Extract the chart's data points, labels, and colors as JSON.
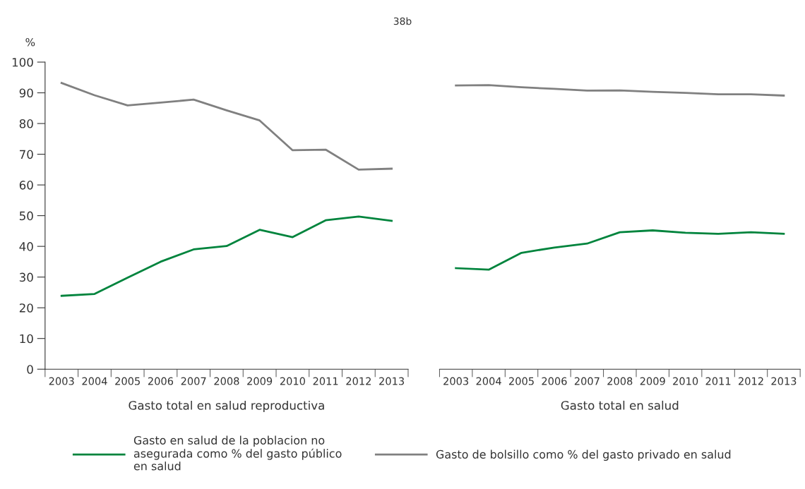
{
  "chart_data": [
    {
      "type": "line",
      "title": "38b",
      "xlabel": "Gasto total en salud reproductiva",
      "ylabel": "%",
      "categories": [
        "2003",
        "2004",
        "2005",
        "2006",
        "2007",
        "2008",
        "2009",
        "2010",
        "2011",
        "2012",
        "2013"
      ],
      "ylim": [
        0,
        100
      ],
      "yticks": [
        0,
        10,
        20,
        30,
        40,
        50,
        60,
        70,
        80,
        90,
        100
      ],
      "grid": false,
      "legend": "bottom",
      "marker": "none",
      "line_style": "solid",
      "series": [
        {
          "name": "Gasto en salud de la poblacion no\nasegurada como % del gasto público\nen salud",
          "color": "#00843d",
          "values": [
            23.9,
            24.5,
            29.8,
            35.0,
            39.0,
            40.1,
            45.4,
            43.0,
            48.5,
            49.7,
            48.3
          ]
        },
        {
          "name": "Gasto de bolsillo como % del gasto privado en salud",
          "color": "#808080",
          "values": [
            93.2,
            89.2,
            85.9,
            86.8,
            87.8,
            84.3,
            81.0,
            71.3,
            71.5,
            65.0,
            65.3
          ]
        }
      ]
    },
    {
      "type": "line",
      "xlabel": "Gasto total en salud",
      "categories": [
        "2003",
        "2004",
        "2005",
        "2006",
        "2007",
        "2008",
        "2009",
        "2010",
        "2011",
        "2012",
        "2013"
      ],
      "ylim": [
        0,
        100
      ],
      "tick_labels": "x",
      "grid": false,
      "marker": "none",
      "line_style": "solid",
      "series": [
        {
          "color": "#00843d",
          "values": [
            32.9,
            32.4,
            37.9,
            39.6,
            40.9,
            44.6,
            45.2,
            44.4,
            44.1,
            44.6,
            44.1
          ]
        },
        {
          "color": "#808080",
          "values": [
            92.4,
            92.5,
            91.8,
            91.3,
            90.7,
            90.8,
            90.3,
            90.0,
            89.5,
            89.5,
            89.1
          ]
        }
      ]
    }
  ]
}
